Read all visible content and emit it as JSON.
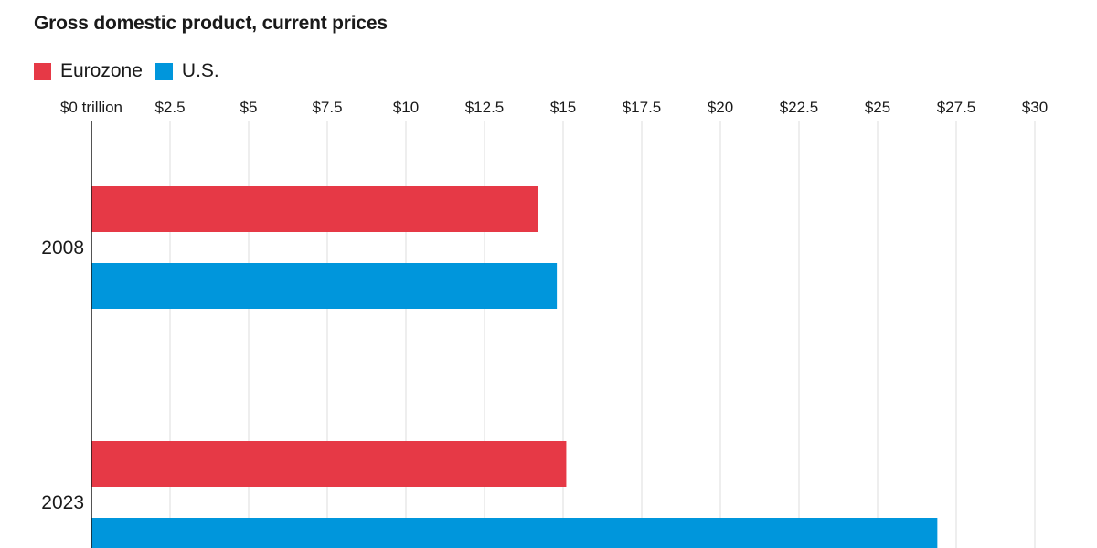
{
  "chart_data": {
    "type": "bar",
    "orientation": "horizontal",
    "title": "Gross domestic product, current prices",
    "xlabel": "",
    "ylabel": "",
    "categories": [
      "2008",
      "2023"
    ],
    "series": [
      {
        "name": "Eurozone",
        "color": "#e63946",
        "values": [
          14.2,
          15.1
        ]
      },
      {
        "name": "U.S.",
        "color": "#0096dc",
        "values": [
          14.8,
          26.9
        ]
      }
    ],
    "xlim": [
      0,
      30
    ],
    "ticks": [
      0,
      2.5,
      5,
      7.5,
      10,
      12.5,
      15,
      17.5,
      20,
      22.5,
      25,
      27.5,
      30
    ],
    "tick_labels": [
      "$0 trillion",
      "$2.5",
      "$5",
      "$7.5",
      "$10",
      "$12.5",
      "$15",
      "$17.5",
      "$20",
      "$22.5",
      "$25",
      "$27.5",
      "$30"
    ],
    "grid": true,
    "legend_position": "top-left"
  }
}
